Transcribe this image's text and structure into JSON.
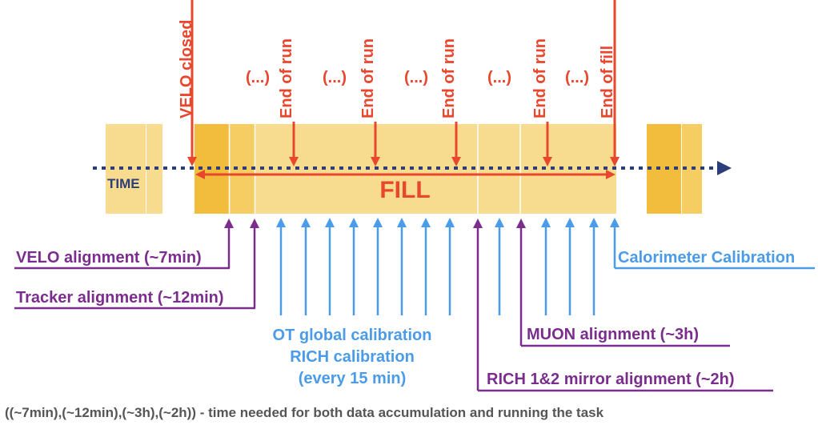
{
  "top_labels": {
    "velo_closed": "VELO closed",
    "end_of_run_1": "End of run",
    "end_of_run_2": "End of run",
    "end_of_run_3": "End of run",
    "end_of_run_4": "End of run",
    "end_of_fill": "End of fill",
    "ellipsis_1": "(...)",
    "ellipsis_2": "(...)",
    "ellipsis_3": "(...)",
    "ellipsis_4": "(...)"
  },
  "time_label": "TIME",
  "fill_label": "FILL",
  "bottom_labels": {
    "velo_alignment": "VELO alignment (~7min)",
    "tracker_alignment": "Tracker alignment (~12min)",
    "calorimeter_calibration": "Calorimeter Calibration",
    "ot_global_calibration": "OT global calibration",
    "rich_calibration": "RICH calibration",
    "every_15_min": "(every 15 min)",
    "muon_alignment": "MUON alignment (~3h)",
    "rich_mirror_alignment": "RICH 1&2 mirror alignment (~2h)"
  },
  "footnote": "((~7min),(~12min),(~3h),(~2h)) - time needed for both data accumulation and running the task",
  "colors": {
    "red": "#e8472d",
    "purple": "#7b2d8e",
    "blue": "#4a9be8",
    "navy": "#2c3e7a",
    "bar_light": "#f7dc8f",
    "bar_dark": "#f2bd3c",
    "footnote": "#555555"
  }
}
